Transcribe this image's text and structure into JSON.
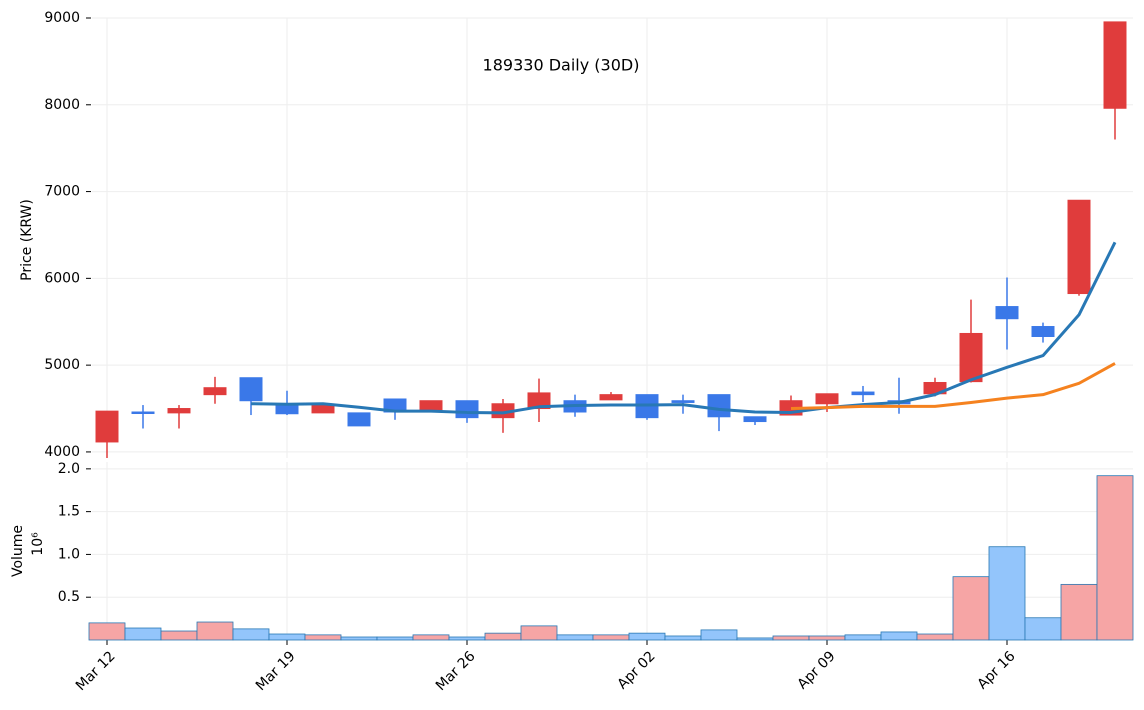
{
  "chart_data": {
    "type": "candlestick",
    "title": "189330 Daily (30D)",
    "ylabel": "Price (KRW)",
    "categories": [
      "Mar 12",
      null,
      null,
      null,
      null,
      "Mar 19",
      null,
      null,
      null,
      null,
      "Mar 26",
      null,
      null,
      null,
      null,
      "Apr 02",
      null,
      null,
      null,
      null,
      "Apr 09",
      null,
      null,
      null,
      null,
      "Apr 16",
      null,
      null,
      null
    ],
    "open": [
      4115,
      4460,
      4450,
      4660,
      4855,
      4555,
      4450,
      4450,
      4610,
      4475,
      4590,
      4395,
      4500,
      4590,
      4600,
      4660,
      4590,
      4660,
      4405,
      4425,
      4555,
      4690,
      4590,
      4670,
      4810,
      5675,
      5445,
      5825,
      7960
    ],
    "high": [
      4470,
      4540,
      4540,
      4865,
      4855,
      4705,
      4560,
      4450,
      4610,
      4590,
      4590,
      4610,
      4845,
      4660,
      4690,
      4660,
      4660,
      4660,
      4405,
      4650,
      4670,
      4760,
      4855,
      4855,
      5755,
      6010,
      5490,
      6900,
      8955
    ],
    "low": [
      3930,
      4270,
      4270,
      4555,
      4425,
      4425,
      4450,
      4300,
      4370,
      4475,
      4335,
      4220,
      4345,
      4405,
      4600,
      4370,
      4440,
      4240,
      4310,
      4425,
      4460,
      4575,
      4440,
      4640,
      4800,
      5180,
      5260,
      5800,
      7600
    ],
    "close": [
      4470,
      4450,
      4500,
      4740,
      4590,
      4440,
      4545,
      4300,
      4460,
      4590,
      4395,
      4555,
      4680,
      4460,
      4660,
      4395,
      4570,
      4405,
      4350,
      4590,
      4670,
      4660,
      4555,
      4800,
      5365,
      5535,
      5330,
      6900,
      8955
    ],
    "up_color": "#e03c3c",
    "down_color": "#3a78e8",
    "series": [
      {
        "color": "#2878b5",
        "values": [
          null,
          null,
          null,
          null,
          4555,
          4550,
          4555,
          4515,
          4470,
          4470,
          4455,
          4450,
          4520,
          4535,
          4540,
          4540,
          4545,
          4490,
          4460,
          4455,
          4510,
          4545,
          4570,
          4660,
          4830,
          4975,
          5110,
          5580,
          6415
        ]
      },
      {
        "color": "#f5821f",
        "values": [
          null,
          null,
          null,
          null,
          null,
          null,
          null,
          null,
          null,
          null,
          null,
          null,
          null,
          null,
          null,
          null,
          null,
          null,
          null,
          4500,
          4510,
          4525,
          4525,
          4525,
          4570,
          4620,
          4660,
          4790,
          5020
        ]
      }
    ],
    "ylim": [
      3930,
      9000
    ],
    "yticks": [
      4000,
      5000,
      6000,
      7000,
      8000,
      9000
    ],
    "grid": true,
    "volume": {
      "label": "Volume",
      "offset_label": "10⁶",
      "up_color": "#f6a5a5",
      "down_color": "#93c5fb",
      "edge_color": "#2878b5",
      "values": [
        0.2,
        0.14,
        0.105,
        0.21,
        0.13,
        0.07,
        0.06,
        0.035,
        0.035,
        0.06,
        0.035,
        0.08,
        0.165,
        0.06,
        0.06,
        0.08,
        0.047,
        0.118,
        0.024,
        0.047,
        0.047,
        0.06,
        0.094,
        0.07,
        0.74,
        1.09,
        0.26,
        0.65,
        1.92
      ],
      "ylim": [
        0,
        2.08
      ],
      "yticks": [
        0.5,
        {
          "value": 1,
          "label": "1.0"
        },
        1.5,
        {
          "value": 2,
          "label": "2.0"
        }
      ]
    }
  }
}
